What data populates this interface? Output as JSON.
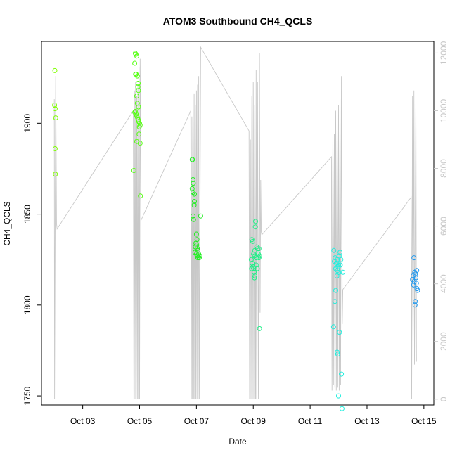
{
  "chart_data": {
    "type": "scatter",
    "title": "ATOM3 Southbound CH4_QCLS",
    "xlabel": "Date",
    "ylabel": "CH4_QCLS",
    "x_domain_days": [
      1.55,
      15.35
    ],
    "ylim": [
      1745,
      1945
    ],
    "ylim_right": [
      -200,
      12400
    ],
    "x_ticks": [
      {
        "day": 3,
        "label": "Oct 03"
      },
      {
        "day": 5,
        "label": "Oct 05"
      },
      {
        "day": 7,
        "label": "Oct 07"
      },
      {
        "day": 9,
        "label": "Oct 09"
      },
      {
        "day": 11,
        "label": "Oct 11"
      },
      {
        "day": 13,
        "label": "Oct 13"
      },
      {
        "day": 15,
        "label": "Oct 15"
      }
    ],
    "y_ticks": [
      1750,
      1800,
      1850,
      1900
    ],
    "y_ticks_right": [
      0,
      2000,
      4000,
      6000,
      8000,
      10000,
      12000
    ],
    "grid": false,
    "series": [
      {
        "color": "#7fff00",
        "points": [
          [
            2.02,
            1929
          ],
          [
            2.01,
            1910
          ],
          [
            2.03,
            1908
          ],
          [
            2.05,
            1903
          ],
          [
            2.03,
            1886
          ],
          [
            2.04,
            1872
          ]
        ]
      },
      {
        "color": "#55ff11",
        "points": [
          [
            4.85,
            1938.5
          ],
          [
            4.87,
            1938
          ],
          [
            4.9,
            1937
          ],
          [
            4.83,
            1933
          ],
          [
            4.86,
            1927
          ],
          [
            4.88,
            1927
          ],
          [
            4.92,
            1926
          ],
          [
            4.95,
            1922
          ],
          [
            4.94,
            1920
          ],
          [
            4.96,
            1918
          ],
          [
            4.9,
            1915
          ],
          [
            4.92,
            1911
          ],
          [
            4.96,
            1909
          ],
          [
            4.85,
            1906.5
          ],
          [
            4.83,
            1906
          ],
          [
            4.88,
            1905
          ],
          [
            4.9,
            1904
          ],
          [
            4.93,
            1903
          ],
          [
            4.95,
            1902
          ],
          [
            4.97,
            1901
          ],
          [
            5.0,
            1900
          ],
          [
            5.02,
            1899
          ],
          [
            4.99,
            1898
          ],
          [
            4.98,
            1894
          ],
          [
            4.9,
            1890
          ],
          [
            5.02,
            1889
          ],
          [
            4.8,
            1874
          ],
          [
            5.03,
            1860
          ]
        ]
      },
      {
        "color": "#22ee22",
        "points": [
          [
            6.85,
            1880
          ],
          [
            6.86,
            1880
          ],
          [
            6.88,
            1869
          ],
          [
            6.89,
            1867
          ],
          [
            6.85,
            1864
          ],
          [
            6.88,
            1862
          ],
          [
            6.93,
            1861
          ],
          [
            6.93,
            1857
          ],
          [
            6.92,
            1855
          ],
          [
            6.88,
            1849
          ],
          [
            7.15,
            1849
          ],
          [
            6.9,
            1847
          ],
          [
            7.0,
            1839
          ],
          [
            7.02,
            1836
          ],
          [
            6.98,
            1834
          ],
          [
            7.01,
            1833
          ],
          [
            6.96,
            1832
          ],
          [
            7.03,
            1831
          ],
          [
            7.05,
            1830
          ],
          [
            6.95,
            1829
          ],
          [
            7.0,
            1828
          ],
          [
            7.08,
            1828
          ],
          [
            7.03,
            1827
          ],
          [
            7.12,
            1827
          ],
          [
            7.05,
            1826
          ],
          [
            7.1,
            1826
          ]
        ]
      },
      {
        "color": "#22ee88",
        "points": [
          [
            8.95,
            1836
          ],
          [
            9.08,
            1846
          ],
          [
            9.07,
            1843
          ],
          [
            9.12,
            1832
          ],
          [
            9.15,
            1831
          ],
          [
            9.05,
            1830
          ],
          [
            8.98,
            1835
          ],
          [
            9.01,
            1828
          ],
          [
            9.04,
            1827
          ],
          [
            9.2,
            1831
          ],
          [
            9.18,
            1828
          ],
          [
            9.22,
            1827
          ],
          [
            9.1,
            1826
          ],
          [
            9.2,
            1826
          ],
          [
            8.93,
            1825
          ],
          [
            8.96,
            1823
          ],
          [
            9.1,
            1822
          ],
          [
            8.99,
            1821
          ],
          [
            8.94,
            1820
          ],
          [
            9.02,
            1820
          ],
          [
            9.14,
            1820
          ],
          [
            9.03,
            1818
          ],
          [
            9.06,
            1816
          ],
          [
            9.04,
            1815
          ],
          [
            9.22,
            1787
          ]
        ]
      },
      {
        "color": "#22eedd",
        "points": [
          [
            11.83,
            1830
          ],
          [
            12.05,
            1829
          ],
          [
            12.02,
            1827
          ],
          [
            11.88,
            1826
          ],
          [
            11.95,
            1825
          ],
          [
            12.08,
            1825
          ],
          [
            11.85,
            1824
          ],
          [
            11.92,
            1823
          ],
          [
            12.0,
            1822
          ],
          [
            12.06,
            1822
          ],
          [
            11.98,
            1821
          ],
          [
            11.9,
            1820
          ],
          [
            11.96,
            1819
          ],
          [
            12.02,
            1818
          ],
          [
            12.15,
            1818
          ],
          [
            11.94,
            1816
          ],
          [
            11.9,
            1808
          ],
          [
            11.87,
            1802
          ],
          [
            11.82,
            1788
          ],
          [
            12.03,
            1785
          ],
          [
            11.95,
            1774
          ],
          [
            11.97,
            1773
          ],
          [
            12.1,
            1762
          ],
          [
            12.0,
            1750
          ],
          [
            12.12,
            1743
          ]
        ]
      },
      {
        "color": "#2299ee",
        "points": [
          [
            14.65,
            1826
          ],
          [
            14.75,
            1819
          ],
          [
            14.68,
            1818
          ],
          [
            14.7,
            1817
          ],
          [
            14.62,
            1816
          ],
          [
            14.72,
            1815
          ],
          [
            14.6,
            1814
          ],
          [
            14.66,
            1813
          ],
          [
            14.74,
            1812
          ],
          [
            14.64,
            1811
          ],
          [
            14.76,
            1809
          ],
          [
            14.78,
            1808
          ],
          [
            14.7,
            1802
          ],
          [
            14.69,
            1800
          ]
        ]
      }
    ],
    "secondary_series": {
      "color": "#c8c8c8",
      "points": [
        [
          2.0,
          10400
        ],
        [
          2.01,
          0
        ],
        [
          2.05,
          11200
        ],
        [
          2.08,
          6100
        ],
        [
          2.1,
          5900
        ],
        [
          4.78,
          10000
        ],
        [
          4.8,
          0
        ],
        [
          4.82,
          10700
        ],
        [
          4.84,
          0
        ],
        [
          4.86,
          11000
        ],
        [
          4.88,
          0
        ],
        [
          4.9,
          10500
        ],
        [
          4.92,
          0
        ],
        [
          4.94,
          10900
        ],
        [
          4.96,
          0
        ],
        [
          4.98,
          11500
        ],
        [
          5.0,
          0
        ],
        [
          5.02,
          11800
        ],
        [
          5.05,
          6200
        ],
        [
          6.8,
          10000
        ],
        [
          6.82,
          0
        ],
        [
          6.84,
          9800
        ],
        [
          6.86,
          0
        ],
        [
          6.88,
          10400
        ],
        [
          6.9,
          0
        ],
        [
          6.92,
          10600
        ],
        [
          6.94,
          0
        ],
        [
          6.96,
          10200
        ],
        [
          6.98,
          0
        ],
        [
          7.0,
          10700
        ],
        [
          7.02,
          0
        ],
        [
          7.04,
          10900
        ],
        [
          7.06,
          0
        ],
        [
          7.08,
          11200
        ],
        [
          7.1,
          0
        ],
        [
          7.15,
          12200
        ],
        [
          8.85,
          9300
        ],
        [
          8.87,
          0
        ],
        [
          8.9,
          9000
        ],
        [
          8.92,
          0
        ],
        [
          8.95,
          10500
        ],
        [
          8.97,
          0
        ],
        [
          9.0,
          11000
        ],
        [
          9.02,
          0
        ],
        [
          9.05,
          10200
        ],
        [
          9.08,
          0
        ],
        [
          9.1,
          11400
        ],
        [
          9.12,
          0
        ],
        [
          9.15,
          11000
        ],
        [
          9.18,
          0
        ],
        [
          9.22,
          12000
        ],
        [
          9.24,
          3000
        ],
        [
          9.26,
          7600
        ],
        [
          9.28,
          5800
        ],
        [
          9.3,
          5700
        ],
        [
          11.75,
          8400
        ],
        [
          11.77,
          300
        ],
        [
          11.8,
          9500
        ],
        [
          11.82,
          500
        ],
        [
          11.85,
          9200
        ],
        [
          11.87,
          400
        ],
        [
          11.9,
          10000
        ],
        [
          11.92,
          300
        ],
        [
          11.95,
          10000
        ],
        [
          11.97,
          400
        ],
        [
          12.0,
          10200
        ],
        [
          12.02,
          300
        ],
        [
          12.05,
          10400
        ],
        [
          12.07,
          500
        ],
        [
          12.1,
          11200
        ],
        [
          12.13,
          2600
        ],
        [
          12.15,
          3800
        ],
        [
          14.55,
          7000
        ],
        [
          14.57,
          0
        ],
        [
          14.6,
          10500
        ],
        [
          14.62,
          1500
        ],
        [
          14.65,
          10700
        ],
        [
          14.67,
          1200
        ],
        [
          14.72,
          10500
        ],
        [
          14.74,
          1300
        ]
      ]
    }
  }
}
